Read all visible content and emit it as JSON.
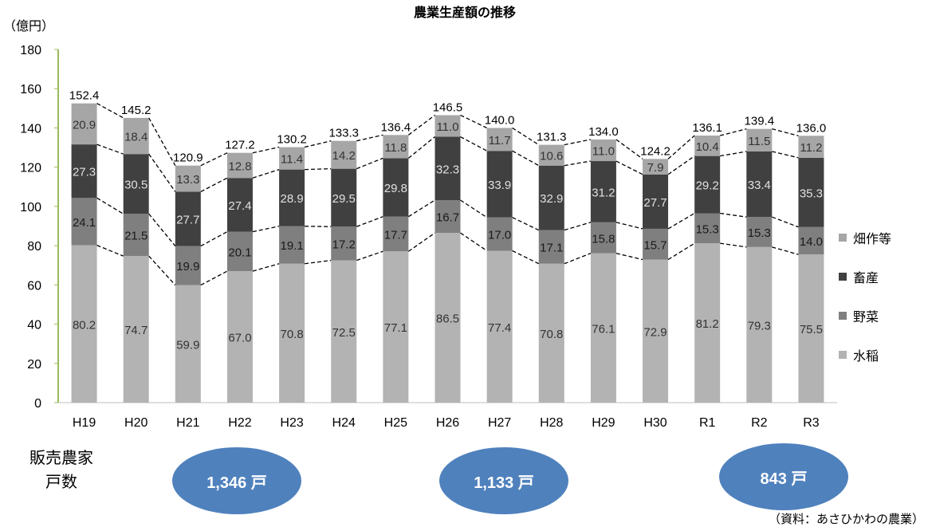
{
  "chart_data": {
    "type": "bar",
    "stacked": true,
    "title": "農業生産額の推移",
    "ylabel": "（億円）",
    "ylim": [
      0,
      180
    ],
    "yticks": [
      0,
      20,
      40,
      60,
      80,
      100,
      120,
      140,
      160,
      180
    ],
    "grid": false,
    "legend_position": "right",
    "categories": [
      "H19",
      "H20",
      "H21",
      "H22",
      "H23",
      "H24",
      "H25",
      "H26",
      "H27",
      "H28",
      "H29",
      "H30",
      "R1",
      "R2",
      "R3"
    ],
    "series": [
      {
        "name": "水稲",
        "color": "#b3b3b3",
        "label_color": "#333333",
        "values": [
          80.2,
          74.7,
          59.9,
          67.0,
          70.8,
          72.5,
          77.1,
          86.5,
          77.4,
          70.8,
          76.1,
          72.9,
          81.2,
          79.3,
          75.5
        ]
      },
      {
        "name": "野菜",
        "color": "#7f7f7f",
        "label_color": "#1a1a1a",
        "values": [
          24.1,
          21.5,
          19.9,
          20.1,
          19.1,
          17.2,
          17.7,
          16.7,
          17.0,
          17.1,
          15.8,
          15.7,
          15.3,
          15.3,
          14.0
        ]
      },
      {
        "name": "畜産",
        "color": "#404040",
        "label_color": "#e0e0e0",
        "values": [
          27.3,
          30.5,
          27.7,
          27.4,
          28.9,
          29.5,
          29.8,
          32.3,
          33.9,
          32.9,
          31.2,
          27.7,
          29.2,
          33.4,
          35.3
        ]
      },
      {
        "name": "畑作等",
        "color": "#a6a6a6",
        "label_color": "#333333",
        "values": [
          20.9,
          18.4,
          13.3,
          12.8,
          11.4,
          14.2,
          11.8,
          11.0,
          11.7,
          10.6,
          11.0,
          7.9,
          10.4,
          11.5,
          11.2
        ]
      }
    ],
    "totals": [
      "152.4",
      "145.2",
      "120.9",
      "127.2",
      "130.2",
      "133.3",
      "136.4",
      "146.5",
      "140.0",
      "131.3",
      "134.0",
      "124.2",
      "136.1",
      "139.4",
      "136.0"
    ],
    "value_labels": [
      [
        "80.2",
        "74.7",
        "59.9",
        "67.0",
        "70.8",
        "72.5",
        "77.1",
        "86.5",
        "77.4",
        "70.8",
        "76.1",
        "72.9",
        "81.2",
        "79.3",
        "75.5"
      ],
      [
        "24.1",
        "21.5",
        "19.9",
        "20.1",
        "19.1",
        "17.2",
        "17.7",
        "16.7",
        "17.0",
        "17.1",
        "15.8",
        "15.7",
        "15.3",
        "15.3",
        "14.0"
      ],
      [
        "27.3",
        "30.5",
        "27.7",
        "27.4",
        "28.9",
        "29.5",
        "29.8",
        "32.3",
        "33.9",
        "32.9",
        "31.2",
        "27.7",
        "29.2",
        "33.4",
        "35.3"
      ],
      [
        "20.9",
        "18.4",
        "13.3",
        "12.8",
        "11.4",
        "14.2",
        "11.8",
        "11.0",
        "11.7",
        "10.6",
        "11.0",
        "7.9",
        "10.4",
        "11.5",
        "11.2"
      ]
    ],
    "legend_order": [
      "畑作等",
      "畜産",
      "野菜",
      "水稲"
    ],
    "connector_lines": "dashed"
  },
  "households": {
    "label_line1": "販売農家",
    "label_line2": "戸数",
    "bubbles": [
      {
        "text": "1,346 戸",
        "year": "H21"
      },
      {
        "text": "1,133 戸",
        "year": "H26"
      },
      {
        "text": "843 戸",
        "year": "R2"
      }
    ],
    "bubble_color": "#4f81bd"
  },
  "source_note": "（資料：あさひかわの農業）"
}
